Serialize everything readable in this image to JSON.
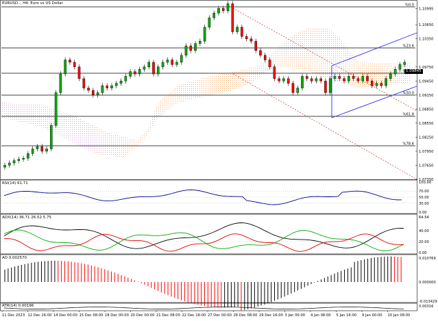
{
  "header": {
    "symbol_title": "EURUSD.., H4:  Euro vs US Dollar"
  },
  "current_price_label": "1.09845",
  "colors": {
    "bull": "#00aa00",
    "bear": "#ff0000",
    "candle": "#000000",
    "fib": "#000000",
    "channel_blue": "#2a2aff",
    "channel_red": "#cc3333",
    "ichimoku_orange": "#f4a460",
    "ichimoku_violet": "#c8a0d8",
    "rsi_line": "#00008b",
    "adx_main": "#000000",
    "adx_plus": "#00aa00",
    "adx_minus": "#dd0000",
    "ao_up": "#000000",
    "ao_down": "#ff0000",
    "atr_line": "#000000"
  },
  "fib_levels": [
    "%0.0",
    "%23.6",
    "%38.2",
    "%50.0",
    "%61.8",
    "%78.6"
  ],
  "price_axis": [
    "1.10995",
    "1.10650",
    "1.10350",
    "1.09750",
    "1.09450",
    "1.09150",
    "1.08850",
    "1.08550",
    "1.08250",
    "1.07950",
    "1.07650",
    "1.07350"
  ],
  "time_axis": [
    "11 Dec 2023",
    "12 Dec 16:00",
    "14 Dec 00:00",
    "15 Dec 08:00",
    "18 Dec 00:00",
    "20 Dec 00:00",
    "21 Dec 08:00",
    "22 Dec 16:00",
    "27 Dec 00:00",
    "28 Dec 08:00",
    "29 Dec 16:00",
    "3 Jan 00:00",
    "4 Jan 08:00",
    "5 Jan 16:00",
    "9 Jan 00:00",
    "10 Jan 08:00"
  ],
  "rsi": {
    "title": "RSI(14) 61.71",
    "axis": [
      "100.00",
      "70.00",
      "50.00",
      "30.00",
      "0.00"
    ]
  },
  "adx": {
    "title": "ADX(14) 36.71 26.52 5.75",
    "axis": [
      "64.54",
      "40.00",
      "20.00",
      "0.00"
    ]
  },
  "ao": {
    "title": "AO 0.002570",
    "axis": [
      "0.010769",
      "0.000000",
      "-0.013429"
    ]
  },
  "atr": {
    "title": "ATR(14) 0.00196",
    "axis": [
      "0.00316"
    ]
  },
  "chart_data": {
    "type": "candlestick",
    "note_series": "approximate close path of EURUSD H4 read from price axis",
    "closes": [
      1.0765,
      1.077,
      1.0775,
      1.0778,
      1.078,
      1.079,
      1.08,
      1.0805,
      1.0795,
      1.08,
      1.085,
      1.092,
      1.096,
      1.099,
      1.0985,
      1.0975,
      1.095,
      1.093,
      1.0925,
      1.0915,
      1.092,
      1.0935,
      1.093,
      1.0935,
      1.094,
      1.0945,
      1.0955,
      1.0965,
      1.096,
      1.097,
      1.0975,
      1.0985,
      1.096,
      1.0975,
      1.0985,
      1.099,
      1.098,
      1.0985,
      1.1,
      1.102,
      1.101,
      1.1025,
      1.103,
      1.106,
      1.108,
      1.109,
      1.11,
      1.1095,
      1.111,
      1.105,
      1.106,
      1.104,
      1.1035,
      1.103,
      1.101,
      1.1,
      1.099,
      1.0975,
      1.095,
      1.0945,
      1.095,
      1.094,
      1.092,
      1.093,
      1.0955,
      1.095,
      1.0945,
      1.095,
      1.0945,
      1.092,
      1.095,
      1.0955,
      1.095,
      1.0945,
      1.0955,
      1.095,
      1.0945,
      1.0955,
      1.0945,
      1.0935,
      1.094,
      1.0935,
      1.095,
      1.096,
      1.097,
      1.098,
      1.0985
    ],
    "ylim": [
      1.0735,
      1.1115
    ]
  }
}
